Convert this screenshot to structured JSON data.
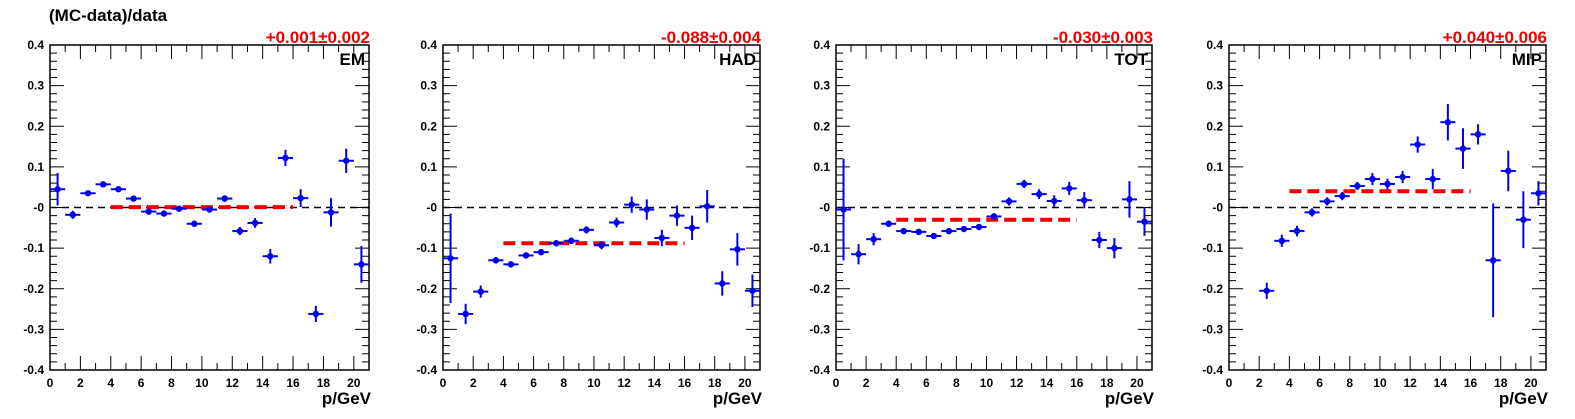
{
  "figure": {
    "ylabel": "(MC-data)/data"
  },
  "chart_data": [
    {
      "type": "scatter",
      "panel_label": "EM",
      "fit_text": "+0.001±0.002",
      "fit_value": 0.001,
      "fit_range": [
        4,
        16
      ],
      "xlabel": "p/GeV",
      "xlim": [
        0,
        21
      ],
      "ylim": [
        -0.4,
        0.4
      ],
      "x_ticks": [
        0,
        2,
        4,
        6,
        8,
        10,
        12,
        14,
        16,
        18,
        20
      ],
      "y_ticks": [
        -0.4,
        -0.3,
        -0.2,
        -0.1,
        0,
        0.1,
        0.2,
        0.3,
        0.4
      ],
      "y_tick_labels": [
        "-0.4",
        "-0.3",
        "-0.2",
        "-0.1",
        "-0",
        "0.1",
        "0.2",
        "0.3",
        "0.4"
      ],
      "reference_line": 0,
      "points": [
        {
          "x": 0.5,
          "y": 0.045,
          "err": 0.04
        },
        {
          "x": 1.5,
          "y": -0.018,
          "err": 0.01
        },
        {
          "x": 2.5,
          "y": 0.035,
          "err": 0.006
        },
        {
          "x": 3.5,
          "y": 0.057,
          "err": 0.005
        },
        {
          "x": 4.5,
          "y": 0.045,
          "err": 0.005
        },
        {
          "x": 5.5,
          "y": 0.022,
          "err": 0.005
        },
        {
          "x": 6.5,
          "y": -0.01,
          "err": 0.005
        },
        {
          "x": 7.5,
          "y": -0.015,
          "err": 0.005
        },
        {
          "x": 8.5,
          "y": -0.003,
          "err": 0.005
        },
        {
          "x": 9.5,
          "y": -0.04,
          "err": 0.006
        },
        {
          "x": 10.5,
          "y": -0.005,
          "err": 0.006
        },
        {
          "x": 11.5,
          "y": 0.022,
          "err": 0.008
        },
        {
          "x": 12.5,
          "y": -0.058,
          "err": 0.01
        },
        {
          "x": 13.5,
          "y": -0.038,
          "err": 0.012
        },
        {
          "x": 14.5,
          "y": -0.12,
          "err": 0.018
        },
        {
          "x": 15.5,
          "y": 0.122,
          "err": 0.02
        },
        {
          "x": 16.5,
          "y": 0.023,
          "err": 0.022
        },
        {
          "x": 17.5,
          "y": -0.262,
          "err": 0.02
        },
        {
          "x": 18.5,
          "y": -0.012,
          "err": 0.035
        },
        {
          "x": 19.5,
          "y": 0.115,
          "err": 0.03
        },
        {
          "x": 20.5,
          "y": -0.14,
          "err": 0.045
        }
      ]
    },
    {
      "type": "scatter",
      "panel_label": "HAD",
      "fit_text": "-0.088±0.004",
      "fit_value": -0.088,
      "fit_range": [
        4,
        16
      ],
      "xlabel": "p/GeV",
      "xlim": [
        0,
        21
      ],
      "ylim": [
        -0.4,
        0.4
      ],
      "x_ticks": [
        0,
        2,
        4,
        6,
        8,
        10,
        12,
        14,
        16,
        18,
        20
      ],
      "y_ticks": [
        -0.4,
        -0.3,
        -0.2,
        -0.1,
        0,
        0.1,
        0.2,
        0.3,
        0.4
      ],
      "y_tick_labels": [
        "-0.4",
        "-0.3",
        "-0.2",
        "-0.1",
        "-0",
        "0.1",
        "0.2",
        "0.3",
        "0.4"
      ],
      "reference_line": 0,
      "points": [
        {
          "x": 0.5,
          "y": -0.125,
          "err": 0.11
        },
        {
          "x": 1.5,
          "y": -0.262,
          "err": 0.025
        },
        {
          "x": 2.5,
          "y": -0.207,
          "err": 0.015
        },
        {
          "x": 3.5,
          "y": -0.13,
          "err": 0.008
        },
        {
          "x": 4.5,
          "y": -0.14,
          "err": 0.007
        },
        {
          "x": 5.5,
          "y": -0.118,
          "err": 0.007
        },
        {
          "x": 6.5,
          "y": -0.11,
          "err": 0.007
        },
        {
          "x": 7.5,
          "y": -0.088,
          "err": 0.007
        },
        {
          "x": 8.5,
          "y": -0.082,
          "err": 0.008
        },
        {
          "x": 9.5,
          "y": -0.055,
          "err": 0.009
        },
        {
          "x": 10.5,
          "y": -0.093,
          "err": 0.01
        },
        {
          "x": 11.5,
          "y": -0.037,
          "err": 0.012
        },
        {
          "x": 12.5,
          "y": 0.007,
          "err": 0.02
        },
        {
          "x": 13.5,
          "y": -0.005,
          "err": 0.025
        },
        {
          "x": 14.5,
          "y": -0.075,
          "err": 0.02
        },
        {
          "x": 15.5,
          "y": -0.02,
          "err": 0.025
        },
        {
          "x": 16.5,
          "y": -0.05,
          "err": 0.03
        },
        {
          "x": 17.5,
          "y": 0.003,
          "err": 0.04
        },
        {
          "x": 18.5,
          "y": -0.187,
          "err": 0.03
        },
        {
          "x": 19.5,
          "y": -0.103,
          "err": 0.04
        },
        {
          "x": 20.5,
          "y": -0.205,
          "err": 0.04
        }
      ]
    },
    {
      "type": "scatter",
      "panel_label": "TOT",
      "fit_text": "-0.030±0.003",
      "fit_value": -0.03,
      "fit_range": [
        4,
        16
      ],
      "xlabel": "p/GeV",
      "xlim": [
        0,
        21
      ],
      "ylim": [
        -0.4,
        0.4
      ],
      "x_ticks": [
        0,
        2,
        4,
        6,
        8,
        10,
        12,
        14,
        16,
        18,
        20
      ],
      "y_ticks": [
        -0.4,
        -0.3,
        -0.2,
        -0.1,
        0,
        0.1,
        0.2,
        0.3,
        0.4
      ],
      "y_tick_labels": [
        "-0.4",
        "-0.3",
        "-0.2",
        "-0.1",
        "-0",
        "0.1",
        "0.2",
        "0.3",
        "0.4"
      ],
      "reference_line": 0,
      "points": [
        {
          "x": 0.5,
          "y": -0.005,
          "err": 0.125
        },
        {
          "x": 1.5,
          "y": -0.115,
          "err": 0.025
        },
        {
          "x": 2.5,
          "y": -0.078,
          "err": 0.015
        },
        {
          "x": 3.5,
          "y": -0.04,
          "err": 0.008
        },
        {
          "x": 4.5,
          "y": -0.058,
          "err": 0.006
        },
        {
          "x": 5.5,
          "y": -0.06,
          "err": 0.006
        },
        {
          "x": 6.5,
          "y": -0.07,
          "err": 0.006
        },
        {
          "x": 7.5,
          "y": -0.058,
          "err": 0.006
        },
        {
          "x": 8.5,
          "y": -0.053,
          "err": 0.006
        },
        {
          "x": 9.5,
          "y": -0.048,
          "err": 0.007
        },
        {
          "x": 10.5,
          "y": -0.022,
          "err": 0.008
        },
        {
          "x": 11.5,
          "y": 0.015,
          "err": 0.01
        },
        {
          "x": 12.5,
          "y": 0.058,
          "err": 0.01
        },
        {
          "x": 13.5,
          "y": 0.033,
          "err": 0.012
        },
        {
          "x": 14.5,
          "y": 0.016,
          "err": 0.014
        },
        {
          "x": 15.5,
          "y": 0.047,
          "err": 0.016
        },
        {
          "x": 16.5,
          "y": 0.018,
          "err": 0.02
        },
        {
          "x": 17.5,
          "y": -0.08,
          "err": 0.02
        },
        {
          "x": 18.5,
          "y": -0.1,
          "err": 0.025
        },
        {
          "x": 19.5,
          "y": 0.02,
          "err": 0.045
        },
        {
          "x": 20.5,
          "y": -0.035,
          "err": 0.035
        }
      ]
    },
    {
      "type": "scatter",
      "panel_label": "MIP",
      "fit_text": "+0.040±0.006",
      "fit_value": 0.04,
      "fit_range": [
        4,
        16
      ],
      "xlabel": "p/GeV",
      "xlim": [
        0,
        21
      ],
      "ylim": [
        -0.4,
        0.4
      ],
      "x_ticks": [
        0,
        2,
        4,
        6,
        8,
        10,
        12,
        14,
        16,
        18,
        20
      ],
      "y_ticks": [
        -0.4,
        -0.3,
        -0.2,
        -0.1,
        0,
        0.1,
        0.2,
        0.3,
        0.4
      ],
      "y_tick_labels": [
        "-0.4",
        "-0.3",
        "-0.2",
        "-0.1",
        "-0",
        "0.1",
        "0.2",
        "0.3",
        "0.4"
      ],
      "reference_line": 0,
      "points": [
        {
          "x": 2.5,
          "y": -0.205,
          "err": 0.02
        },
        {
          "x": 3.5,
          "y": -0.082,
          "err": 0.015
        },
        {
          "x": 4.5,
          "y": -0.058,
          "err": 0.013
        },
        {
          "x": 5.5,
          "y": -0.012,
          "err": 0.01
        },
        {
          "x": 6.5,
          "y": 0.015,
          "err": 0.01
        },
        {
          "x": 7.5,
          "y": 0.028,
          "err": 0.01
        },
        {
          "x": 8.5,
          "y": 0.053,
          "err": 0.01
        },
        {
          "x": 9.5,
          "y": 0.07,
          "err": 0.015
        },
        {
          "x": 10.5,
          "y": 0.058,
          "err": 0.013
        },
        {
          "x": 11.5,
          "y": 0.075,
          "err": 0.015
        },
        {
          "x": 12.5,
          "y": 0.155,
          "err": 0.02
        },
        {
          "x": 13.5,
          "y": 0.07,
          "err": 0.025
        },
        {
          "x": 14.5,
          "y": 0.21,
          "err": 0.045
        },
        {
          "x": 15.5,
          "y": 0.145,
          "err": 0.05
        },
        {
          "x": 16.5,
          "y": 0.18,
          "err": 0.025
        },
        {
          "x": 17.5,
          "y": -0.13,
          "err": 0.14
        },
        {
          "x": 18.5,
          "y": 0.09,
          "err": 0.05
        },
        {
          "x": 19.5,
          "y": -0.03,
          "err": 0.07
        },
        {
          "x": 20.5,
          "y": 0.035,
          "err": 0.03
        }
      ]
    }
  ],
  "style": {
    "marker_color": "#0000ee",
    "fit_color": "#ee0000",
    "axis_color": "#000000",
    "reference_line_color": "#000000"
  }
}
